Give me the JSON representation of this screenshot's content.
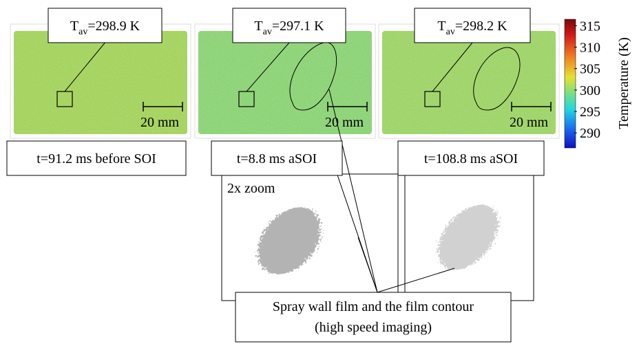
{
  "panels": [
    {
      "average": {
        "symbol": "T",
        "subscript": "av",
        "value": "=298.9 K"
      },
      "time": "t=91.2 ms before SOI",
      "scale_bar": "20 mm"
    },
    {
      "average": {
        "symbol": "T",
        "subscript": "av",
        "value": "=297.1 K"
      },
      "time": "t=8.8 ms aSOI",
      "scale_bar": "20 mm"
    },
    {
      "average": {
        "symbol": "T",
        "subscript": "av",
        "value": "=298.2 K"
      },
      "time": "t=108.8 ms aSOI",
      "scale_bar": "20 mm"
    }
  ],
  "zoom": {
    "label": "2x zoom"
  },
  "caption": {
    "lines": [
      "Spray wall film and the film contour",
      "(high speed imaging)"
    ]
  },
  "colorbar": {
    "label": "Temperature (K)",
    "lim": [
      286.5,
      316.5
    ],
    "ticks": [
      290,
      295,
      300,
      305,
      310,
      315
    ]
  }
}
